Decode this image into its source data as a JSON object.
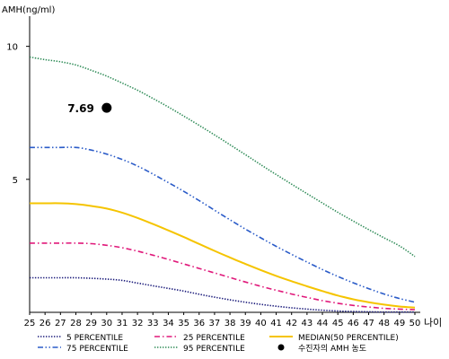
{
  "chart_data": {
    "type": "line",
    "ylabel": "AMH(ng/ml)",
    "xlabel": "나이",
    "x": [
      25,
      26,
      27,
      28,
      29,
      30,
      31,
      32,
      33,
      34,
      35,
      36,
      37,
      38,
      39,
      40,
      41,
      42,
      43,
      44,
      45,
      46,
      47,
      48,
      49,
      50
    ],
    "x_tick_labels": [
      "25",
      "26",
      "27",
      "28",
      "29",
      "30",
      "31",
      "32",
      "33",
      "34",
      "35",
      "36",
      "37",
      "38",
      "39",
      "40",
      "41",
      "42",
      "43",
      "44",
      "45",
      "46",
      "47",
      "48",
      "49",
      "50"
    ],
    "y_ticks": [
      {
        "value": 5,
        "label": "5"
      },
      {
        "value": 10,
        "label": "10"
      }
    ],
    "ylim": [
      0,
      11
    ],
    "xlim": [
      25,
      50
    ],
    "grid": false,
    "legend_position": "bottom",
    "series": [
      {
        "name": "5 PERCENTILE",
        "color": "#1a1a7a",
        "style": "dotted",
        "values": [
          1.3,
          1.3,
          1.3,
          1.3,
          1.28,
          1.25,
          1.2,
          1.1,
          1.0,
          0.9,
          0.8,
          0.68,
          0.57,
          0.47,
          0.38,
          0.3,
          0.23,
          0.17,
          0.12,
          0.08,
          0.05,
          0.03,
          0.02,
          0.01,
          0.01,
          0.01
        ]
      },
      {
        "name": "25 PERCENTILE",
        "color": "#e0187a",
        "style": "dashdot",
        "values": [
          2.6,
          2.6,
          2.6,
          2.6,
          2.58,
          2.52,
          2.43,
          2.3,
          2.15,
          1.99,
          1.82,
          1.65,
          1.48,
          1.31,
          1.14,
          0.98,
          0.83,
          0.69,
          0.56,
          0.44,
          0.34,
          0.26,
          0.2,
          0.15,
          0.12,
          0.1
        ]
      },
      {
        "name": "MEDIAN(50 PERCENTILE)",
        "color": "#f5c400",
        "style": "solid",
        "values": [
          4.1,
          4.1,
          4.1,
          4.07,
          4.0,
          3.9,
          3.75,
          3.55,
          3.32,
          3.08,
          2.83,
          2.57,
          2.31,
          2.06,
          1.82,
          1.59,
          1.37,
          1.17,
          0.98,
          0.8,
          0.63,
          0.49,
          0.38,
          0.29,
          0.22,
          0.18
        ]
      },
      {
        "name": "75 PERCENTILE",
        "color": "#2a5bc8",
        "style": "dashdotdot",
        "values": [
          6.2,
          6.2,
          6.2,
          6.2,
          6.1,
          5.95,
          5.75,
          5.5,
          5.2,
          4.88,
          4.55,
          4.2,
          3.84,
          3.48,
          3.13,
          2.8,
          2.48,
          2.18,
          1.89,
          1.61,
          1.35,
          1.11,
          0.89,
          0.69,
          0.52,
          0.38
        ]
      },
      {
        "name": "95 PERCENTILE",
        "color": "#2e8b57",
        "style": "dotted",
        "values": [
          9.6,
          9.5,
          9.42,
          9.3,
          9.1,
          8.88,
          8.62,
          8.35,
          8.04,
          7.72,
          7.38,
          7.03,
          6.67,
          6.3,
          5.93,
          5.55,
          5.18,
          4.82,
          4.46,
          4.11,
          3.76,
          3.43,
          3.11,
          2.8,
          2.5,
          2.1
        ]
      }
    ],
    "marker": {
      "name": "수진자의 AMH 농도",
      "x": 30,
      "y": 7.69,
      "label": "7.69",
      "color": "#000000"
    }
  }
}
